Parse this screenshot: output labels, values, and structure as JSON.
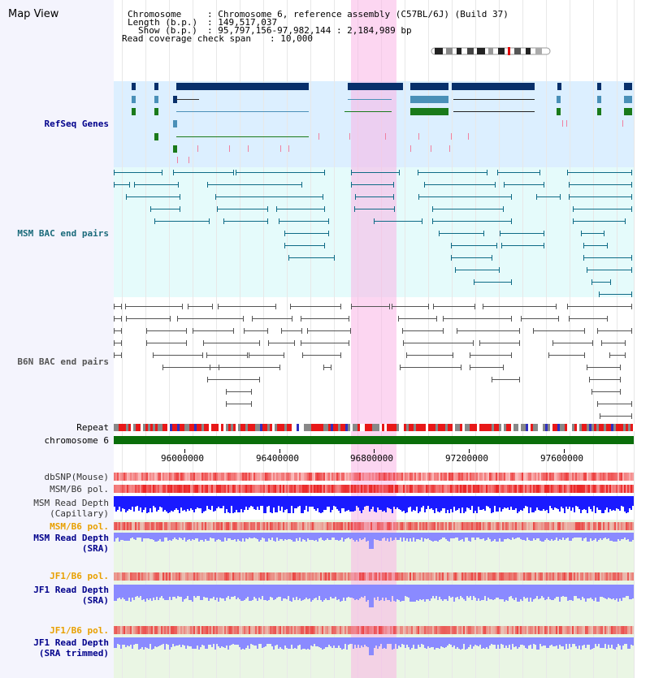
{
  "view": {
    "title": "Map View",
    "chromosome_label": "Chromosome",
    "chromosome_value": ": Chromosome 6, reference assembly (C57BL/6J) (Build 37)",
    "length_label": "Length (b.p.)",
    "length_value": ": 149,517,037",
    "show_label": "Show (b.p.)",
    "show_value": ": 95,797,156-97,982,144 : 2,184,989 bp",
    "coverage_label": "Read coverage check span",
    "coverage_value": ": 10,000"
  },
  "tracks": {
    "refseq": "RefSeq Genes",
    "msm_bac": "MSM BAC end pairs",
    "b6n_bac": "B6N BAC end pairs",
    "repeat": "Repeat",
    "chromosome": "chromosome 6",
    "dbsnp": "dbSNP(Mouse)",
    "msm_b6_pol": "MSM/B6 pol.",
    "msm_depth_cap_1": "MSM Read Depth",
    "msm_depth_cap_2": "(Capillary)",
    "msm_b6_pol_sra": "MSM/B6 pol.",
    "msm_depth_sra_1": "MSM Read Depth",
    "msm_depth_sra_2": "(SRA)",
    "jf1_b6_pol": "JF1/B6 pol.",
    "jf1_depth_sra_1": "JF1 Read Depth",
    "jf1_depth_sra_2": "(SRA)",
    "jf1_b6_pol_trim": "JF1/B6 pol.",
    "jf1_depth_trim_1": "JF1 Read Depth",
    "jf1_depth_trim_2": "(SRA trimmed)"
  },
  "axis": {
    "ticks": [
      "96000000",
      "96400000",
      "96800000",
      "97200000",
      "97600000"
    ]
  },
  "colors": {
    "refseq_bg": "#dcefff",
    "msm_bg": "#e5fbfb",
    "sra_bg": "#eaf6e4",
    "highlight": "#f7b8e4",
    "gene_dark": "#08306b",
    "gene_mid": "#4a90b8",
    "gene_green": "#1a7a1a",
    "msm_line": "#0e6b86",
    "b6n_line": "#555555",
    "chrom_bar": "#0a6e0a",
    "pol_red": "#f03030",
    "depth_blue": "#1a1aff",
    "depth_light": "#8a8aff",
    "label_orange": "#e8a000",
    "label_navy": "#00008b",
    "label_teal": "#1a6a7a"
  }
}
